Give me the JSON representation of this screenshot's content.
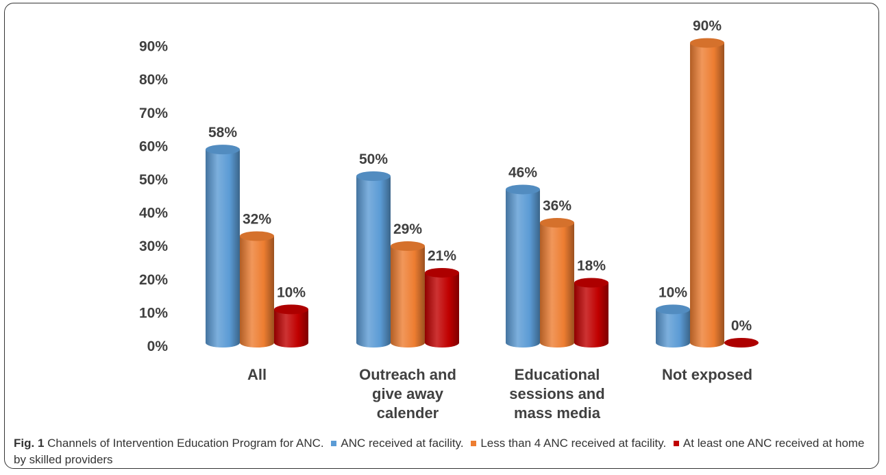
{
  "chart_data": {
    "type": "bar",
    "categories": [
      [
        "All"
      ],
      [
        "Outreach and",
        "give away",
        "calender"
      ],
      [
        "Educational",
        "sessions and",
        "mass media"
      ],
      [
        "Not exposed"
      ]
    ],
    "series": [
      {
        "name": "ANC received at facility",
        "values": [
          58,
          50,
          46,
          10
        ],
        "labels": [
          "58%",
          "50%",
          "46%",
          "10%"
        ],
        "color": "#5B9BD5"
      },
      {
        "name": "Less than 4 ANC received at facility",
        "values": [
          32,
          29,
          36,
          90
        ],
        "labels": [
          "32%",
          "29%",
          "36%",
          "90%"
        ],
        "color": "#ED7D31"
      },
      {
        "name": "At least one ANC received at home by skilled providers",
        "values": [
          10,
          21,
          18,
          0
        ],
        "labels": [
          "10%",
          "21%",
          "18%",
          "0%"
        ],
        "color": "#C00000"
      }
    ],
    "yticks": [
      "0%",
      "10%",
      "20%",
      "30%",
      "40%",
      "50%",
      "60%",
      "70%",
      "80%",
      "90%"
    ],
    "ylim": [
      0,
      90
    ],
    "grid": false,
    "legend": "caption"
  },
  "caption": {
    "fig_label": "Fig. 1",
    "title": "Channels of Intervention Education Program for ANC.",
    "legend_items": [
      "ANC received at facility.",
      "Less than 4 ANC received at facility.",
      "At least one ANC received at home by skilled providers"
    ]
  }
}
